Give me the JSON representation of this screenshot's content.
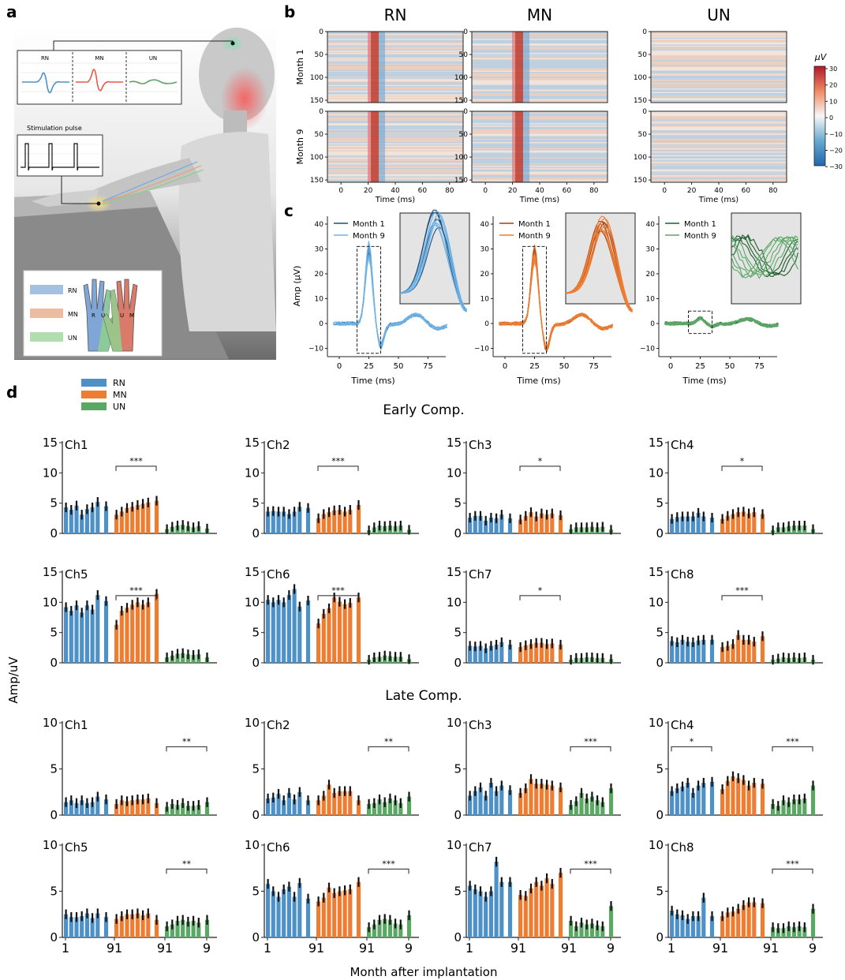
{
  "panel_labels": {
    "a": "a",
    "b": "b",
    "c": "c",
    "d": "d"
  },
  "colors": {
    "RN": "#4e91c6",
    "MN": "#ef7d31",
    "UN": "#5ba865",
    "RN_dark": "#1f4e79",
    "MN_dark": "#8a3b0a",
    "UN_dark": "#1d5e2c"
  },
  "panel_a": {
    "signal_labels": [
      "RN",
      "MN",
      "UN"
    ],
    "stimulation_label": "Stimulation pulse",
    "hand_legend": [
      "RN",
      "MN",
      "UN"
    ],
    "hand_letters": [
      "R",
      "U",
      "U",
      "M"
    ]
  },
  "panel_b": {
    "columns": [
      "RN",
      "MN",
      "UN"
    ],
    "rows": [
      "Month 1",
      "Month 9"
    ],
    "y_ticks": [
      "0",
      "50",
      "100",
      "150"
    ],
    "x_ticks": [
      "0",
      "20",
      "40",
      "60",
      "80"
    ],
    "xlabel": "Time (ms)",
    "colorbar_unit": "μV",
    "colorbar_ticks": [
      "30",
      "20",
      "10",
      "0",
      "−10",
      "−20",
      "−30"
    ]
  },
  "panel_c": {
    "ylabel": "Amp (μV)",
    "xlabel": "Time (ms)",
    "y_ticks": [
      "40",
      "30",
      "20",
      "10",
      "0",
      "−10"
    ],
    "x_ticks": [
      "0",
      "25",
      "50",
      "75"
    ],
    "legend": [
      "Month 1",
      "Month 9"
    ]
  },
  "panel_d": {
    "legend": [
      "RN",
      "MN",
      "UN"
    ],
    "ylabel": "Amp/uV",
    "xlabel": "Month after implantation",
    "x_tick_labels": [
      "1",
      "91",
      "91",
      "9"
    ],
    "early": {
      "title": "Early Comp.",
      "ylim": [
        0,
        15
      ],
      "y_ticks": [
        "0",
        "5",
        "10",
        "15"
      ],
      "panels": [
        {
          "name": "Ch1",
          "sig": "***",
          "sig_group": "MN",
          "RN": [
            4.3,
            3.9,
            4.6,
            3.1,
            4.0,
            4.3,
            5.2,
            4.5
          ],
          "MN": [
            3.1,
            3.6,
            4.2,
            4.4,
            4.7,
            4.9,
            5.1,
            5.4
          ],
          "UN": [
            0.7,
            1.1,
            1.3,
            1.4,
            1.2,
            1.0,
            1.2,
            0.8
          ]
        },
        {
          "name": "Ch2",
          "sig": "***",
          "sig_group": "MN",
          "RN": [
            3.6,
            3.7,
            3.6,
            3.6,
            3.2,
            3.6,
            4.4,
            4.2
          ],
          "MN": [
            2.5,
            3.2,
            3.5,
            3.8,
            3.9,
            3.6,
            3.9,
            4.7
          ],
          "UN": [
            0.5,
            1.0,
            1.3,
            1.2,
            1.3,
            1.2,
            1.3,
            0.6
          ]
        },
        {
          "name": "Ch3",
          "sig": "*",
          "sig_group": "MN",
          "RN": [
            2.6,
            2.9,
            2.9,
            2.1,
            2.6,
            2.5,
            3.1,
            2.5
          ],
          "MN": [
            2.3,
            2.9,
            3.5,
            2.8,
            3.3,
            3.1,
            3.3,
            3.0
          ],
          "UN": [
            0.7,
            1.0,
            1.0,
            1.0,
            1.1,
            1.0,
            1.1,
            0.6
          ]
        },
        {
          "name": "Ch4",
          "sig": "*",
          "sig_group": "MN",
          "RN": [
            2.4,
            2.7,
            2.8,
            2.8,
            2.8,
            3.4,
            2.8,
            2.6
          ],
          "MN": [
            2.4,
            2.9,
            3.2,
            3.5,
            3.6,
            3.3,
            3.5,
            3.2
          ],
          "UN": [
            0.5,
            1.0,
            1.0,
            1.2,
            1.3,
            1.3,
            1.3,
            0.7
          ]
        },
        {
          "name": "Ch5",
          "sig": "***",
          "sig_group": "MN",
          "RN": [
            9.2,
            8.6,
            9.5,
            8.3,
            9.5,
            8.8,
            11.2,
            10.2
          ],
          "MN": [
            6.3,
            8.6,
            9.1,
            9.6,
            10.0,
            9.6,
            10.0,
            11.4
          ],
          "UN": [
            0.9,
            1.2,
            1.5,
            1.6,
            1.4,
            1.3,
            1.4,
            0.9
          ]
        },
        {
          "name": "Ch6",
          "sig": "***",
          "sig_group": "MN",
          "RN": [
            10.4,
            10.0,
            10.4,
            10.0,
            11.2,
            12.2,
            9.3,
            10.3
          ],
          "MN": [
            6.5,
            8.1,
            9.0,
            10.8,
            10.1,
            9.7,
            9.9,
            10.8
          ],
          "UN": [
            0.5,
            0.9,
            1.0,
            1.2,
            1.1,
            1.0,
            1.0,
            0.6
          ]
        },
        {
          "name": "Ch7",
          "sig": "*",
          "sig_group": "MN",
          "RN": [
            2.8,
            2.7,
            2.8,
            2.4,
            2.8,
            3.0,
            3.4,
            3.0
          ],
          "MN": [
            2.6,
            2.9,
            3.1,
            3.3,
            3.3,
            3.1,
            3.2,
            3.0
          ],
          "UN": [
            0.5,
            0.8,
            0.8,
            0.9,
            0.9,
            0.8,
            0.8,
            0.6
          ]
        },
        {
          "name": "Ch8",
          "sig": "***",
          "sig_group": "MN",
          "RN": [
            3.6,
            3.4,
            3.8,
            3.5,
            3.4,
            3.7,
            3.8,
            3.8
          ],
          "MN": [
            2.6,
            2.8,
            3.1,
            4.6,
            3.8,
            3.8,
            3.5,
            4.4
          ],
          "UN": [
            0.5,
            0.7,
            0.9,
            0.8,
            0.9,
            0.8,
            0.9,
            0.5
          ]
        }
      ]
    },
    "late": {
      "title": "Late Comp.",
      "ylim": [
        0,
        10
      ],
      "y_ticks": [
        "0",
        "5",
        "10"
      ],
      "panels": [
        {
          "name": "Ch1",
          "sig": "**",
          "sig_group": "UN",
          "RN": [
            1.4,
            1.6,
            1.3,
            1.6,
            1.3,
            1.4,
            2.0,
            1.7
          ],
          "MN": [
            1.2,
            1.6,
            1.5,
            1.6,
            1.7,
            1.7,
            1.8,
            1.3
          ],
          "UN": [
            0.9,
            1.2,
            1.1,
            1.3,
            1.0,
            1.0,
            1.1,
            1.4
          ]
        },
        {
          "name": "Ch2",
          "sig": "**",
          "sig_group": "UN",
          "RN": [
            1.8,
            1.9,
            2.3,
            1.6,
            2.4,
            1.7,
            2.5,
            1.6
          ],
          "MN": [
            1.6,
            2.1,
            3.3,
            2.4,
            2.6,
            2.6,
            2.6,
            1.6
          ],
          "UN": [
            1.2,
            1.3,
            1.7,
            1.4,
            1.8,
            1.6,
            1.3,
            2.0
          ]
        },
        {
          "name": "Ch3",
          "sig": "***",
          "sig_group": "UN",
          "RN": [
            2.1,
            2.6,
            3.0,
            2.1,
            3.5,
            2.6,
            3.2,
            2.7
          ],
          "MN": [
            2.4,
            2.9,
            3.9,
            3.4,
            3.4,
            3.3,
            3.2,
            3.0
          ],
          "UN": [
            1.1,
            1.5,
            2.4,
            1.8,
            2.0,
            1.6,
            1.4,
            2.9
          ]
        },
        {
          "name": "Ch4",
          "sig": "*",
          "sig_group": "RN",
          "sig2": "***",
          "sig2_group": "UN",
          "RN": [
            2.6,
            2.9,
            3.1,
            3.5,
            2.4,
            3.2,
            3.5,
            3.6
          ],
          "MN": [
            2.8,
            3.7,
            4.2,
            4.0,
            3.8,
            3.2,
            3.5,
            3.4
          ],
          "UN": [
            1.2,
            1.0,
            1.6,
            1.4,
            1.7,
            1.7,
            1.8,
            3.2
          ]
        },
        {
          "name": "Ch5",
          "sig": "**",
          "sig_group": "UN",
          "RN": [
            2.5,
            2.2,
            2.2,
            2.3,
            2.6,
            2.1,
            2.6,
            2.2
          ],
          "MN": [
            2.0,
            2.3,
            2.5,
            2.5,
            2.6,
            2.4,
            2.6,
            1.9
          ],
          "UN": [
            1.2,
            1.4,
            1.8,
            1.9,
            1.7,
            1.8,
            1.6,
            1.9
          ]
        },
        {
          "name": "Ch6",
          "sig": "***",
          "sig_group": "UN",
          "RN": [
            5.8,
            5.0,
            4.4,
            5.2,
            5.5,
            4.4,
            5.9,
            4.2
          ],
          "MN": [
            3.9,
            4.3,
            5.4,
            4.8,
            5.0,
            5.1,
            5.2,
            6.0
          ],
          "UN": [
            1.1,
            1.4,
            1.9,
            2.0,
            1.9,
            1.5,
            1.4,
            2.4
          ]
        },
        {
          "name": "Ch7",
          "sig": "***",
          "sig_group": "UN",
          "RN": [
            5.6,
            5.2,
            5.0,
            4.4,
            5.0,
            8.2,
            6.0,
            6.0
          ],
          "MN": [
            4.6,
            4.5,
            5.3,
            6.0,
            5.6,
            6.4,
            5.8,
            7.0
          ],
          "UN": [
            1.8,
            1.2,
            1.6,
            1.4,
            1.5,
            1.3,
            1.2,
            3.4
          ]
        },
        {
          "name": "Ch8",
          "sig": "***",
          "sig_group": "UN",
          "RN": [
            2.9,
            2.5,
            2.4,
            2.0,
            2.3,
            2.3,
            4.3,
            2.3
          ],
          "MN": [
            2.3,
            2.7,
            2.8,
            3.1,
            3.5,
            3.8,
            3.8,
            3.7
          ],
          "UN": [
            1.1,
            1.0,
            1.0,
            1.2,
            1.1,
            1.2,
            1.1,
            3.1
          ]
        }
      ]
    }
  }
}
